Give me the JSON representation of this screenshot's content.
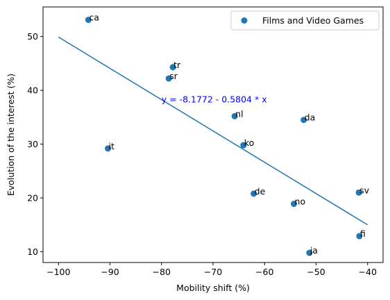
{
  "chart_data": {
    "type": "scatter",
    "xlabel": "Mobility shift (%)",
    "ylabel": "Evolution of the interest (%)",
    "xlim": [
      -103,
      -37
    ],
    "ylim": [
      8,
      55.5
    ],
    "xticks": [
      -100,
      -90,
      -80,
      -70,
      -60,
      -50,
      -40
    ],
    "yticks": [
      10,
      20,
      30,
      40,
      50
    ],
    "xtick_labels": [
      "−100",
      "−90",
      "−80",
      "−70",
      "−60",
      "−50",
      "−40"
    ],
    "ytick_labels": [
      "10",
      "20",
      "30",
      "40",
      "50"
    ],
    "grid": false,
    "legend_position": "top-right",
    "series": [
      {
        "name": "Films and Video Games",
        "color": "#1f77b4",
        "points": [
          {
            "label": "ca",
            "x": -94.2,
            "y": 53.1
          },
          {
            "label": "tr",
            "x": -77.8,
            "y": 44.3
          },
          {
            "label": "sr",
            "x": -78.6,
            "y": 42.2
          },
          {
            "label": "nl",
            "x": -65.8,
            "y": 35.2
          },
          {
            "label": "da",
            "x": -52.4,
            "y": 34.5
          },
          {
            "label": "ko",
            "x": -64.1,
            "y": 29.8
          },
          {
            "label": "it",
            "x": -90.4,
            "y": 29.2
          },
          {
            "label": "sv",
            "x": -41.7,
            "y": 21.0
          },
          {
            "label": "de",
            "x": -62.1,
            "y": 20.8
          },
          {
            "label": "no",
            "x": -54.3,
            "y": 18.9
          },
          {
            "label": "fi",
            "x": -41.6,
            "y": 12.9
          },
          {
            "label": "ja",
            "x": -51.3,
            "y": 9.8
          }
        ]
      }
    ],
    "fit_line": {
      "x": [
        -100,
        -40
      ],
      "y": [
        49.9,
        15.0
      ],
      "color": "#1f77b4"
    },
    "annotation": {
      "text": "y = -8.1772 - 0.5804 * x",
      "x": -80,
      "y": 38.3,
      "color": "#0000ff"
    }
  }
}
